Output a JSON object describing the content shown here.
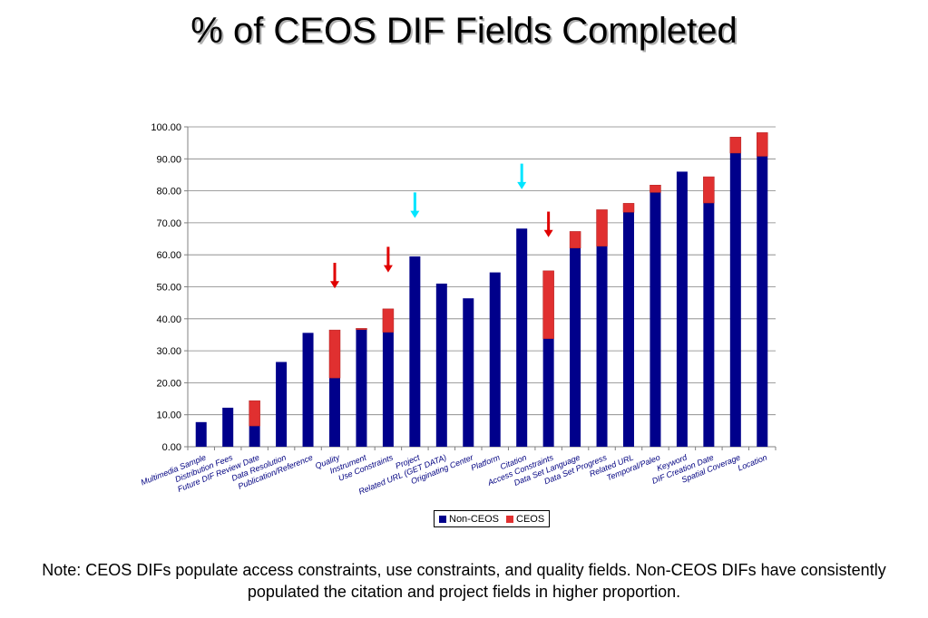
{
  "title": "% of CEOS DIF Fields Completed",
  "note": "Note: CEOS DIFs populate access constraints, use constraints, and quality fields. Non-CEOS DIFs have consistently populated the citation and project fields in higher proportion.",
  "colors": {
    "non_ceos": "#00008B",
    "ceos": "#E03030",
    "arrow_red": "#E00000",
    "arrow_cyan": "#00E5FF"
  },
  "chart_data": {
    "type": "bar",
    "stacked": true,
    "title": "% of CEOS DIF Fields Completed",
    "xlabel": "",
    "ylabel": "",
    "ylim": [
      0,
      100
    ],
    "yticks": [
      "0.00",
      "10.00",
      "20.00",
      "30.00",
      "40.00",
      "50.00",
      "60.00",
      "70.00",
      "80.00",
      "90.00",
      "100.00"
    ],
    "grid": true,
    "legend_position": "bottom",
    "categories": [
      "Multimedia Sample",
      "Distribution Fees",
      "Future DIF Review Date",
      "Data Resolution",
      "Publication/Reference",
      "Quality",
      "Instrument",
      "Use Constraints",
      "Project",
      "Related URL (GET DATA)",
      "Originating Center",
      "Platform",
      "Citation",
      "Access Constraints",
      "Data Set Language",
      "Data Set Progress",
      "Related URL",
      "Temporal/Paleo",
      "Keyword",
      "DIF Creation Date",
      "Spatial Coverage",
      "Location"
    ],
    "series": [
      {
        "name": "Non-CEOS",
        "values": [
          7.7,
          12.2,
          6.5,
          26.5,
          35.6,
          21.5,
          36.6,
          35.8,
          59.5,
          51.0,
          46.4,
          54.5,
          68.2,
          33.8,
          62.1,
          62.7,
          73.3,
          79.5,
          86.0,
          76.2,
          91.8,
          90.8
        ]
      },
      {
        "name": "CEOS",
        "values": [
          0,
          0,
          7.9,
          0,
          0,
          15.0,
          0.4,
          7.3,
          0,
          0,
          0,
          0,
          0,
          21.2,
          5.2,
          11.4,
          2.8,
          2.3,
          0,
          8.2,
          5.0,
          7.4
        ]
      }
    ],
    "annotations": [
      {
        "type": "arrow",
        "category": "Quality",
        "color": "red",
        "from_y": 57.5,
        "to_y": 49.5
      },
      {
        "type": "arrow",
        "category": "Use Constraints",
        "color": "red",
        "from_y": 62.5,
        "to_y": 54.5
      },
      {
        "type": "arrow",
        "category": "Project",
        "color": "cyan",
        "from_y": 79.5,
        "to_y": 71.5
      },
      {
        "type": "arrow",
        "category": "Citation",
        "color": "cyan",
        "from_y": 88.5,
        "to_y": 80.5
      },
      {
        "type": "arrow",
        "category": "Access Constraints",
        "color": "red",
        "from_y": 73.5,
        "to_y": 65.5
      }
    ]
  }
}
